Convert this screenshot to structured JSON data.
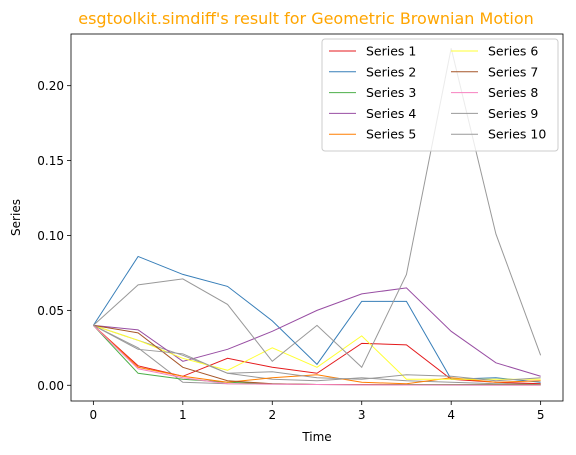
{
  "chart_data": {
    "type": "line",
    "title": "esgtoolkit.simdiff's result for Geometric Brownian Motion",
    "title_color": "#FFA500",
    "xlabel": "Time",
    "ylabel": "Series",
    "xlim": [
      -0.25,
      5.25
    ],
    "ylim": [
      -0.0105,
      0.2345
    ],
    "xticks": [
      0,
      1,
      2,
      3,
      4,
      5
    ],
    "xtick_labels": [
      "0",
      "1",
      "2",
      "3",
      "4",
      "5"
    ],
    "yticks": [
      0.0,
      0.05,
      0.1,
      0.15,
      0.2
    ],
    "ytick_labels": [
      "0.00",
      "0.05",
      "0.10",
      "0.15",
      "0.20"
    ],
    "grid": false,
    "legend_position": "top-right",
    "legend_columns": 2,
    "x": [
      0,
      0.5,
      1,
      1.5,
      2,
      2.5,
      3,
      3.5,
      4,
      4.5,
      5
    ],
    "series": [
      {
        "name": "Series 1",
        "color": "#E41A1C",
        "values": [
          0.04,
          0.013,
          0.006,
          0.018,
          0.012,
          0.008,
          0.028,
          0.027,
          0.004,
          0.002,
          0.001
        ]
      },
      {
        "name": "Series 2",
        "color": "#377EB8",
        "values": [
          0.04,
          0.086,
          0.074,
          0.066,
          0.043,
          0.014,
          0.056,
          0.056,
          0.004,
          0.005,
          0.002
        ]
      },
      {
        "name": "Series 3",
        "color": "#4DAF4A",
        "values": [
          0.04,
          0.008,
          0.004,
          0.002,
          0.001,
          0.0005,
          0.0005,
          0.0005,
          0.0005,
          0.0005,
          0.0005
        ]
      },
      {
        "name": "Series 4",
        "color": "#984EA3",
        "values": [
          0.04,
          0.037,
          0.016,
          0.024,
          0.036,
          0.05,
          0.061,
          0.065,
          0.036,
          0.015,
          0.006
        ]
      },
      {
        "name": "Series 5",
        "color": "#FF7F00",
        "values": [
          0.04,
          0.012,
          0.006,
          0.002,
          0.005,
          0.007,
          0.002,
          0.001,
          0.005,
          0.002,
          0.003
        ]
      },
      {
        "name": "Series 6",
        "color": "#FFFF33",
        "values": [
          0.04,
          0.03,
          0.018,
          0.01,
          0.025,
          0.012,
          0.033,
          0.004,
          0.004,
          0.004,
          0.004
        ]
      },
      {
        "name": "Series 7",
        "color": "#A65628",
        "values": [
          0.04,
          0.035,
          0.012,
          0.003,
          0.001,
          0.0005,
          0.0005,
          0.0003,
          0.0003,
          0.0003,
          0.0002
        ]
      },
      {
        "name": "Series 8",
        "color": "#F781BF",
        "values": [
          0.04,
          0.011,
          0.005,
          0.001,
          0.0008,
          0.0005,
          0.0003,
          0.0002,
          0.0002,
          0.0001,
          0.0001
        ]
      },
      {
        "name": "Series 9",
        "color": "#999999",
        "values": [
          0.04,
          0.024,
          0.021,
          0.008,
          0.009,
          0.005,
          0.004,
          0.007,
          0.006,
          0.003,
          0.005
        ]
      },
      {
        "name": "Series 10",
        "color": "#999999",
        "values": [
          0.04,
          0.067,
          0.071,
          0.054,
          0.016,
          0.04,
          0.012,
          0.074,
          0.225,
          0.101,
          0.02
        ]
      }
    ],
    "extra_gray_lines": [
      {
        "values": [
          0.04,
          0.03,
          0.02,
          0.008,
          0.004,
          0.003,
          0.005,
          0.003,
          0.002,
          0.001,
          0.001
        ]
      },
      {
        "values": [
          0.04,
          0.025,
          0.002,
          0.001,
          0.0008,
          0.0005,
          0.0003,
          0.0002,
          0.0001,
          0.0001,
          0.0001
        ]
      }
    ]
  }
}
